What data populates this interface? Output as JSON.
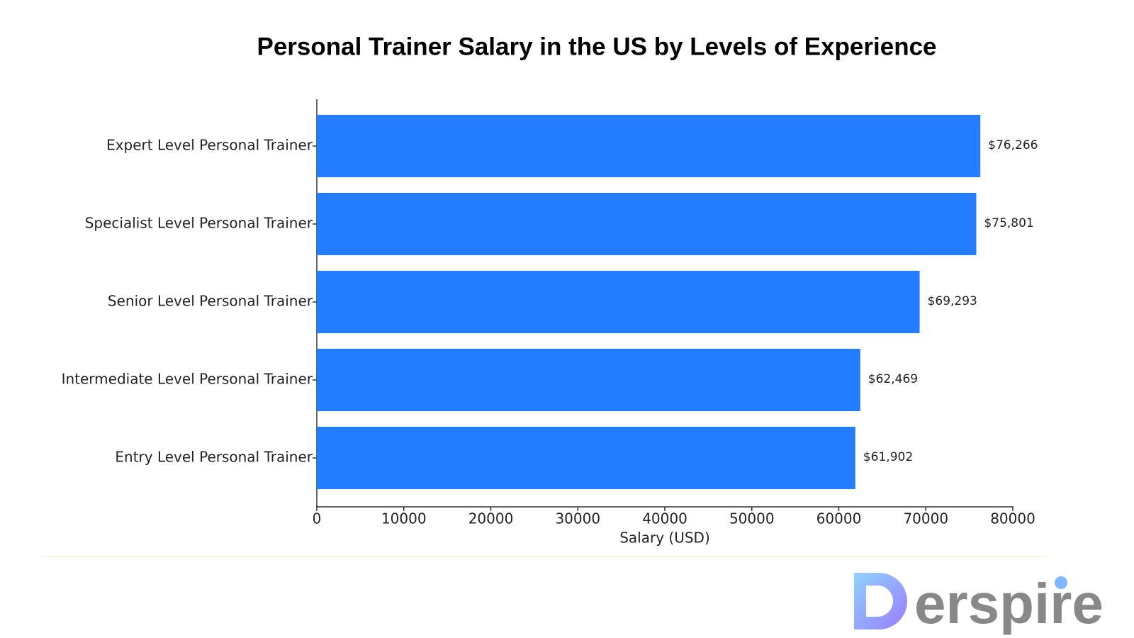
{
  "chart_data": {
    "type": "barh",
    "title": "Personal Trainer Salary in the US by Levels of Experience",
    "categories": [
      "Expert Level Personal Trainer",
      "Specialist Level Personal Trainer",
      "Senior Level Personal Trainer",
      "Intermediate Level Personal Trainer",
      "Entry Level Personal Trainer"
    ],
    "values": [
      76266,
      75801,
      69293,
      62469,
      61902
    ],
    "value_labels": [
      "$76,266",
      "$75,801",
      "$69,293",
      "$62,469",
      "$61,902"
    ],
    "color": "#247cff",
    "xlabel": "Salary (USD)",
    "xlim": [
      0,
      80000
    ],
    "xticks": [
      0,
      10000,
      20000,
      30000,
      40000,
      50000,
      60000,
      70000,
      80000
    ],
    "grid": false
  },
  "logo": {
    "text": "erspire"
  }
}
